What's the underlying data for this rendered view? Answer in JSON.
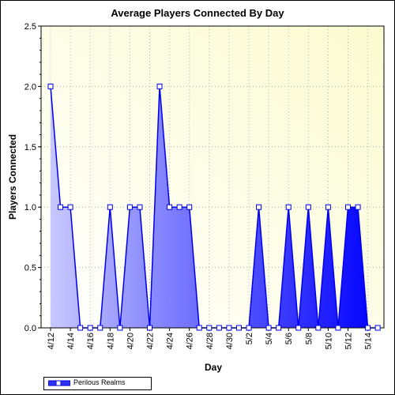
{
  "chart_data": {
    "type": "area",
    "title": "Average Players Connected By Day",
    "xlabel": "Day",
    "ylabel": "Players Connected",
    "ylim": [
      0,
      2.5
    ],
    "yticks": [
      "0.0",
      "0.5",
      "1.0",
      "1.5",
      "2.0",
      "2.5"
    ],
    "x": [
      "4/12",
      "4/13",
      "4/14",
      "4/15",
      "4/16",
      "4/17",
      "4/18",
      "4/19",
      "4/20",
      "4/21",
      "4/22",
      "4/23",
      "4/24",
      "4/25",
      "4/26",
      "4/27",
      "4/28",
      "4/29",
      "4/30",
      "5/1",
      "5/2",
      "5/3",
      "5/4",
      "5/5",
      "5/6",
      "5/7",
      "5/8",
      "5/9",
      "5/10",
      "5/11",
      "5/12",
      "5/13",
      "5/14",
      "5/15"
    ],
    "xtick_labels": [
      "4/12",
      "4/14",
      "4/16",
      "4/18",
      "4/20",
      "4/22",
      "4/24",
      "4/26",
      "4/28",
      "4/30",
      "5/2",
      "5/4",
      "5/6",
      "5/8",
      "5/10",
      "5/12",
      "5/14"
    ],
    "series": [
      {
        "name": "Perilous Realms",
        "values": [
          2,
          1,
          1,
          0,
          0,
          0,
          1,
          0,
          1,
          1,
          0,
          2,
          1,
          1,
          1,
          0,
          0,
          0,
          0,
          0,
          0,
          1,
          0,
          0,
          1,
          0,
          1,
          0,
          1,
          0,
          1,
          1,
          0,
          0
        ]
      }
    ],
    "grid": true,
    "legend": "bottom-left"
  },
  "colors": {
    "plot_background_light": "#ffffe4",
    "plot_background_dark": "#fbfbd0",
    "line": "#0000ee",
    "fill_start": "#c8c8ff",
    "fill_end": "#0000ff",
    "marker_fill": "#ffffff"
  }
}
